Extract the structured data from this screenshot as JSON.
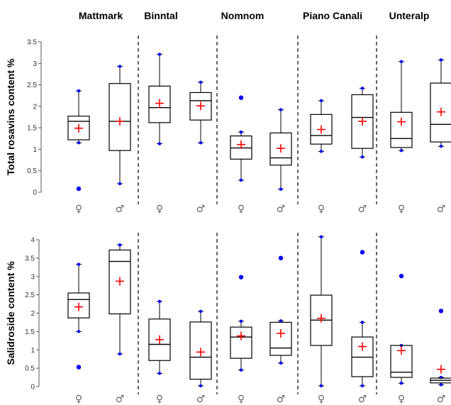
{
  "chart_data": [
    {
      "type": "box",
      "ylabel": "Total rosavins content %",
      "ylim": [
        0,
        3.5
      ],
      "yticks": [
        "0",
        "0.5",
        "1",
        "1.5",
        "2",
        "2.5",
        "3",
        "3.5"
      ],
      "sites": [
        "Mattmark",
        "Binntal",
        "Nomnom",
        "Piano Canali",
        "Unteralp"
      ],
      "sex_labels": [
        "♀",
        "♂"
      ],
      "colors": {
        "box": "#000000",
        "mean": "#ff0000",
        "outlier": "#0000ff"
      },
      "boxes": [
        {
          "site": "Mattmark",
          "sex": "♀",
          "min": 1.15,
          "q1": 1.22,
          "median": 1.65,
          "q3": 1.77,
          "max": 2.36,
          "mean": 1.49,
          "outliers": [
            0.08
          ]
        },
        {
          "site": "Mattmark",
          "sex": "♂",
          "min": 0.2,
          "q1": 0.97,
          "median": 1.65,
          "q3": 2.53,
          "max": 2.93,
          "mean": 1.65,
          "outliers": []
        },
        {
          "site": "Binntal",
          "sex": "♀",
          "min": 1.13,
          "q1": 1.62,
          "median": 1.97,
          "q3": 2.47,
          "max": 3.21,
          "mean": 2.07,
          "outliers": []
        },
        {
          "site": "Binntal",
          "sex": "♂",
          "min": 1.15,
          "q1": 1.68,
          "median": 2.13,
          "q3": 2.32,
          "max": 2.56,
          "mean": 2.01,
          "outliers": []
        },
        {
          "site": "Nomnom",
          "sex": "♀",
          "min": 0.28,
          "q1": 0.77,
          "median": 1.03,
          "q3": 1.31,
          "max": 1.4,
          "mean": 1.11,
          "outliers": [
            2.2
          ]
        },
        {
          "site": "Nomnom",
          "sex": "♂",
          "min": 0.07,
          "q1": 0.63,
          "median": 0.8,
          "q3": 1.38,
          "max": 1.92,
          "mean": 1.02,
          "outliers": []
        },
        {
          "site": "Piano Canali",
          "sex": "♀",
          "min": 0.95,
          "q1": 1.12,
          "median": 1.32,
          "q3": 1.81,
          "max": 2.13,
          "mean": 1.46,
          "outliers": []
        },
        {
          "site": "Piano Canali",
          "sex": "♂",
          "min": 0.82,
          "q1": 1.02,
          "median": 1.74,
          "q3": 2.27,
          "max": 2.42,
          "mean": 1.65,
          "outliers": []
        },
        {
          "site": "Unteralp",
          "sex": "♀",
          "min": 0.97,
          "q1": 1.04,
          "median": 1.25,
          "q3": 1.86,
          "max": 3.04,
          "mean": 1.64,
          "outliers": []
        },
        {
          "site": "Unteralp",
          "sex": "♂",
          "min": 1.07,
          "q1": 1.17,
          "median": 1.58,
          "q3": 2.54,
          "max": 3.08,
          "mean": 1.87,
          "outliers": []
        }
      ]
    },
    {
      "type": "box",
      "ylabel": "Salidroside content %",
      "ylim": [
        0,
        4
      ],
      "yticks": [
        "0",
        "0.5",
        "1",
        "1.5",
        "2",
        "2.5",
        "3",
        "3.5",
        "4"
      ],
      "sites": [
        "Mattmark",
        "Binntal",
        "Nomnom",
        "Piano Canali",
        "Unteralp"
      ],
      "sex_labels": [
        "♀",
        "♂"
      ],
      "colors": {
        "box": "#000000",
        "mean": "#ff0000",
        "outlier": "#0000ff"
      },
      "boxes": [
        {
          "site": "Mattmark",
          "sex": "♀",
          "min": 1.5,
          "q1": 1.87,
          "median": 2.37,
          "q3": 2.55,
          "max": 3.33,
          "mean": 2.17,
          "outliers": [
            0.53
          ]
        },
        {
          "site": "Mattmark",
          "sex": "♂",
          "min": 0.89,
          "q1": 1.98,
          "median": 3.41,
          "q3": 3.72,
          "max": 3.86,
          "mean": 2.87,
          "outliers": []
        },
        {
          "site": "Binntal",
          "sex": "♀",
          "min": 0.36,
          "q1": 0.71,
          "median": 1.15,
          "q3": 1.84,
          "max": 2.32,
          "mean": 1.28,
          "outliers": []
        },
        {
          "site": "Binntal",
          "sex": "♂",
          "min": 0.02,
          "q1": 0.2,
          "median": 0.8,
          "q3": 1.76,
          "max": 2.05,
          "mean": 0.94,
          "outliers": []
        },
        {
          "site": "Nomnom",
          "sex": "♀",
          "min": 0.45,
          "q1": 0.77,
          "median": 1.35,
          "q3": 1.62,
          "max": 1.78,
          "mean": 1.38,
          "outliers": [
            2.98
          ]
        },
        {
          "site": "Nomnom",
          "sex": "♂",
          "min": 0.64,
          "q1": 0.85,
          "median": 1.05,
          "q3": 1.75,
          "max": 1.79,
          "mean": 1.45,
          "outliers": [
            3.5
          ]
        },
        {
          "site": "Piano Canali",
          "sex": "♀",
          "min": 0.02,
          "q1": 1.12,
          "median": 1.81,
          "q3": 2.49,
          "max": 4.08,
          "mean": 1.86,
          "outliers": []
        },
        {
          "site": "Piano Canali",
          "sex": "♂",
          "min": 0.02,
          "q1": 0.27,
          "median": 0.8,
          "q3": 1.35,
          "max": 1.75,
          "mean": 1.09,
          "outliers": [
            3.66
          ]
        },
        {
          "site": "Unteralp",
          "sex": "♀",
          "min": 0.09,
          "q1": 0.25,
          "median": 0.39,
          "q3": 1.12,
          "max": 1.12,
          "mean": 0.98,
          "outliers": [
            3.01
          ]
        },
        {
          "site": "Unteralp",
          "sex": "♂",
          "min": 0.05,
          "q1": 0.1,
          "median": 0.17,
          "q3": 0.23,
          "max": 0.25,
          "mean": 0.47,
          "outliers": [
            2.06
          ]
        }
      ]
    }
  ]
}
